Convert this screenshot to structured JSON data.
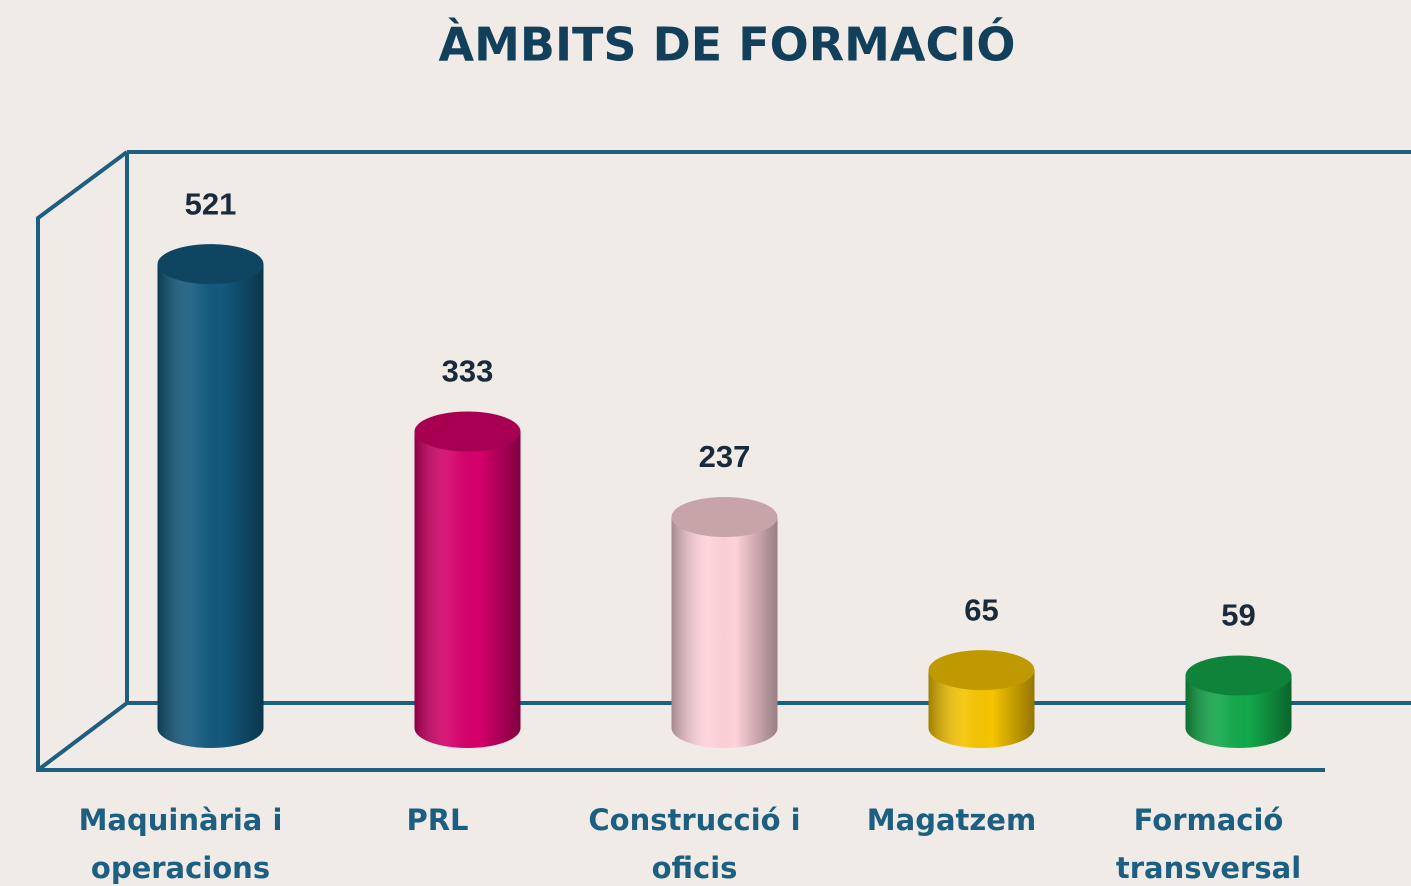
{
  "chart_data": {
    "type": "bar",
    "title": "ÀMBITS DE FORMACIÓ",
    "categories": [
      "Maquinària i operacions",
      "PRL",
      "Construcció i oficis",
      "Magatzem",
      "Formació transversal"
    ],
    "values": [
      521,
      333,
      237,
      65,
      59
    ],
    "colors": [
      "#135a7e",
      "#d6006a",
      "#ffd2d8",
      "#f5c400",
      "#12a84a"
    ],
    "ylim": [
      0,
      620
    ]
  }
}
